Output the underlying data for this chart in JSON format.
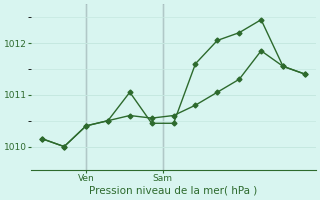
{
  "line1_x": [
    0,
    1,
    2,
    3,
    4,
    5,
    6,
    7,
    8,
    9,
    10,
    11,
    12
  ],
  "line1_y": [
    1010.15,
    1010.0,
    1010.4,
    1010.5,
    1011.05,
    1010.45,
    1010.45,
    1011.6,
    1012.05,
    1012.2,
    1012.45,
    1011.55,
    1011.4
  ],
  "line2_x": [
    0,
    1,
    2,
    3,
    4,
    5,
    6,
    7,
    8,
    9,
    10,
    11,
    12
  ],
  "line2_y": [
    1010.15,
    1010.0,
    1010.4,
    1010.5,
    1010.6,
    1010.55,
    1010.6,
    1010.8,
    1011.05,
    1011.3,
    1011.85,
    1011.55,
    1011.4
  ],
  "line_color": "#2d6a2d",
  "bg_color": "#d8f5f0",
  "grid_major_color": "#c5e8e0",
  "grid_minor_color": "#daf0ea",
  "vline1_x": 2.0,
  "vline2_x": 5.5,
  "vline_color": "#808090",
  "yticks": [
    1010,
    1011,
    1012
  ],
  "ylim": [
    1009.55,
    1012.75
  ],
  "xlim": [
    -0.5,
    12.5
  ],
  "xtick_pos": [
    2.0,
    5.5
  ],
  "xtick_labels": [
    "Ven",
    "Sam"
  ],
  "xlabel": "Pression niveau de la mer( hPa )",
  "marker": "D",
  "marker_size": 2.5,
  "linewidth": 1.0,
  "tick_labelsize": 6.5,
  "xlabel_fontsize": 7.5
}
